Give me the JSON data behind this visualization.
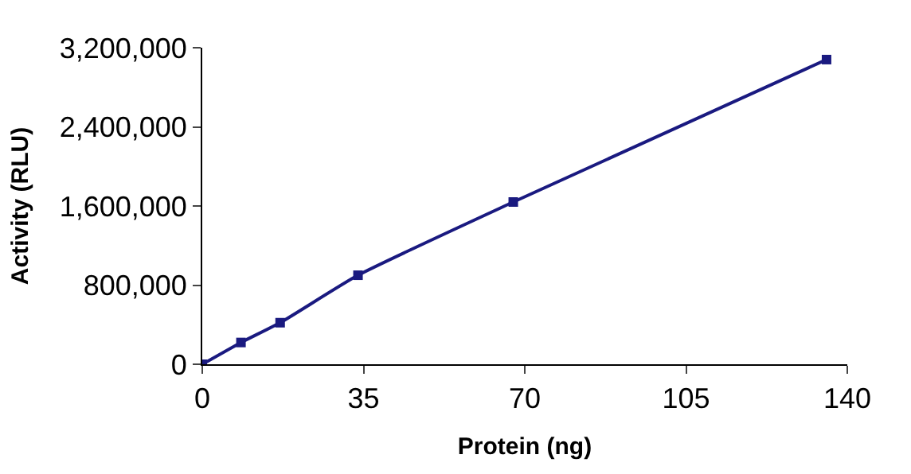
{
  "chart_data": {
    "type": "line",
    "xlabel": "Protein (ng)",
    "ylabel": "Activity (RLU)",
    "x": [
      0,
      8.4,
      16.9,
      33.8,
      67.5,
      135.5
    ],
    "series": [
      {
        "color": "#1a1a80",
        "values": [
          0,
          220000,
          420000,
          900000,
          1640000,
          3080000
        ]
      }
    ],
    "xlim": [
      0,
      140
    ],
    "xticks": [
      0,
      35,
      70,
      105,
      140
    ],
    "ylim": [
      0,
      3200000
    ],
    "yticks": [
      {
        "value": 0,
        "label": "0"
      },
      {
        "value": 800000,
        "label": "800,000"
      },
      {
        "value": 1600000,
        "label": "1,600,000"
      },
      {
        "value": 2400000,
        "label": "2,400,000"
      },
      {
        "value": 3200000,
        "label": "3,200,000"
      }
    ],
    "legend": false,
    "marker": "square",
    "line_style": "solid"
  }
}
